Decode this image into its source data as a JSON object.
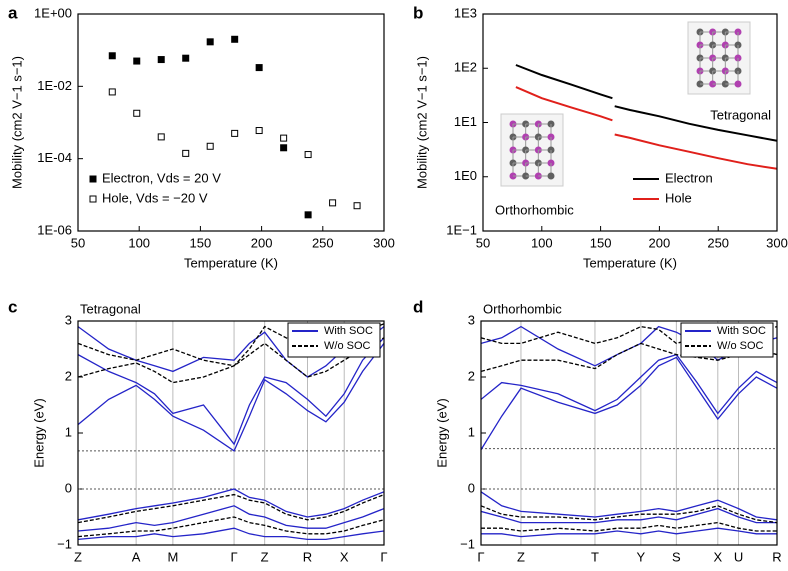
{
  "chart_data": [
    {
      "panel": "a",
      "type": "scatter",
      "xlabel": "Temperature (K)",
      "ylabel": "Mobility (cm2 V−1 s−1)",
      "xlim": [
        50,
        300
      ],
      "ylim": [
        1e-06,
        1
      ],
      "log_y": true,
      "xticks": [
        50,
        100,
        150,
        200,
        250,
        300
      ],
      "yticks": [
        {
          "value": 1,
          "label": "1E+00"
        },
        {
          "value": 0.01,
          "label": "1E-02"
        },
        {
          "value": 0.0001,
          "label": "1E-04"
        },
        {
          "value": 1e-06,
          "label": "1E-06"
        }
      ],
      "legend": "lower left",
      "series": [
        {
          "name": "Electron, Vds = 20 V",
          "color": "#000000",
          "marker": "filled",
          "x": [
            78,
            98,
            118,
            138,
            158,
            178,
            198,
            218,
            238
          ],
          "values": [
            0.07,
            0.05,
            0.055,
            0.06,
            0.17,
            0.2,
            0.033,
            0.0002,
            2.8e-06
          ]
        },
        {
          "name": "Hole, Vds = −20 V",
          "color": "#000000",
          "marker": "open",
          "x": [
            78,
            98,
            118,
            138,
            158,
            178,
            198,
            218,
            238,
            258,
            278
          ],
          "values": [
            0.007,
            0.0018,
            0.0004,
            0.00014,
            0.00022,
            0.0005,
            0.0006,
            0.00037,
            0.00013,
            6e-06,
            5e-06
          ]
        }
      ]
    },
    {
      "panel": "b",
      "type": "line",
      "xlabel": "Temperature (K)",
      "ylabel": "Mobility (cm2 V−1 s−1)",
      "xlim": [
        50,
        300
      ],
      "ylim": [
        0.1,
        1000
      ],
      "log_y": true,
      "xticks": [
        50,
        100,
        150,
        200,
        250,
        300
      ],
      "yticks": [
        {
          "value": 0.1,
          "label": "1E−1"
        },
        {
          "value": 1,
          "label": "1E0"
        },
        {
          "value": 10,
          "label": "1E1"
        },
        {
          "value": 100,
          "label": "1E2"
        },
        {
          "value": 1000,
          "label": "1E3"
        }
      ],
      "legend": "lower right",
      "labels": [
        "Tetragonal",
        "Orthorhombic"
      ],
      "series": [
        {
          "name": "Electron",
          "color": "#000000",
          "x": [
            78,
            100,
            125,
            150,
            160,
            161,
            162,
            175,
            200,
            225,
            250,
            275,
            300
          ],
          "values": [
            115,
            75,
            50,
            33,
            28,
            null,
            20,
            17,
            13,
            9.5,
            7.3,
            5.8,
            4.6
          ]
        },
        {
          "name": "Hole",
          "color": "#e0201b",
          "x": [
            78,
            100,
            125,
            150,
            160,
            161,
            162,
            175,
            200,
            225,
            250,
            275,
            300
          ],
          "values": [
            45,
            28,
            19,
            13,
            11,
            null,
            6,
            5.2,
            3.8,
            2.9,
            2.2,
            1.7,
            1.4
          ]
        }
      ]
    },
    {
      "panel": "c",
      "type": "line",
      "title": "Tetragonal",
      "ylabel": "Energy (eV)",
      "xlim": [
        0,
        1
      ],
      "ylim": [
        -1,
        3
      ],
      "xgrid": true,
      "xticks": [
        {
          "value": 0,
          "label": "Z"
        },
        {
          "value": 0.19,
          "label": "A"
        },
        {
          "value": 0.31,
          "label": "M"
        },
        {
          "value": 0.51,
          "label": "Γ"
        },
        {
          "value": 0.61,
          "label": "Z"
        },
        {
          "value": 0.75,
          "label": "R"
        },
        {
          "value": 0.87,
          "label": "X"
        },
        {
          "value": 1,
          "label": "Γ"
        }
      ],
      "yticks": [
        {
          "value": -1,
          "label": "−1"
        },
        0,
        1,
        2,
        3
      ],
      "hlines": [
        0,
        0.68
      ],
      "legend": "upper right",
      "x": [
        0,
        0.1,
        0.19,
        0.25,
        0.31,
        0.41,
        0.51,
        0.56,
        0.61,
        0.68,
        0.75,
        0.81,
        0.87,
        0.93,
        1
      ],
      "series": [
        {
          "name": "With SOC",
          "color": "#2424c8",
          "dash": false,
          "values": [
            [
              1.15,
              1.6,
              1.85,
              1.6,
              1.3,
              1.05,
              0.68,
              1.3,
              1.95,
              1.7,
              1.4,
              1.2,
              1.55,
              2.1,
              2.6
            ],
            [
              2.4,
              2.1,
              1.9,
              1.7,
              1.35,
              1.5,
              0.8,
              1.5,
              2.0,
              1.9,
              1.6,
              1.3,
              1.7,
              2.3,
              2.7
            ],
            [
              2.9,
              2.5,
              2.3,
              2.2,
              2.1,
              2.35,
              2.3,
              2.6,
              2.8,
              2.3,
              2.0,
              2.2,
              2.5,
              2.6,
              2.9
            ],
            [
              -0.55,
              -0.45,
              -0.35,
              -0.3,
              -0.25,
              -0.15,
              0,
              -0.15,
              -0.2,
              -0.4,
              -0.5,
              -0.45,
              -0.35,
              -0.2,
              -0.05
            ],
            [
              -0.75,
              -0.7,
              -0.6,
              -0.65,
              -0.6,
              -0.45,
              -0.3,
              -0.45,
              -0.5,
              -0.65,
              -0.7,
              -0.7,
              -0.6,
              -0.5,
              -0.35
            ],
            [
              -0.9,
              -0.85,
              -0.85,
              -0.8,
              -0.85,
              -0.8,
              -0.7,
              -0.8,
              -0.85,
              -0.85,
              -0.9,
              -0.9,
              -0.85,
              -0.8,
              -0.75
            ]
          ]
        },
        {
          "name": "W/o SOC",
          "color": "#000000",
          "dash": true,
          "values": [
            [
              2.0,
              2.15,
              2.25,
              2.1,
              1.9,
              2.0,
              2.2,
              2.4,
              2.6,
              2.3,
              2.0,
              2.1,
              2.3,
              2.5,
              2.7
            ],
            [
              2.6,
              2.4,
              2.3,
              2.4,
              2.5,
              2.3,
              2.2,
              2.5,
              2.9,
              2.7,
              2.5,
              2.4,
              2.6,
              2.8,
              2.95
            ],
            [
              -0.6,
              -0.5,
              -0.4,
              -0.35,
              -0.3,
              -0.2,
              -0.1,
              -0.2,
              -0.25,
              -0.45,
              -0.55,
              -0.5,
              -0.4,
              -0.25,
              -0.1
            ],
            [
              -0.85,
              -0.8,
              -0.75,
              -0.75,
              -0.7,
              -0.6,
              -0.5,
              -0.6,
              -0.65,
              -0.75,
              -0.8,
              -0.8,
              -0.75,
              -0.65,
              -0.55
            ]
          ]
        }
      ]
    },
    {
      "panel": "d",
      "type": "line",
      "title": "Orthorhombic",
      "ylabel": "Energy (eV)",
      "xlim": [
        0,
        1
      ],
      "ylim": [
        -1,
        3
      ],
      "xgrid": true,
      "xticks": [
        {
          "value": 0,
          "label": "Γ"
        },
        {
          "value": 0.135,
          "label": "Z"
        },
        {
          "value": 0.385,
          "label": "T"
        },
        {
          "value": 0.54,
          "label": "Y"
        },
        {
          "value": 0.66,
          "label": "S"
        },
        {
          "value": 0.8,
          "label": "X"
        },
        {
          "value": 0.87,
          "label": "U"
        },
        {
          "value": 1,
          "label": "R"
        }
      ],
      "yticks": [
        {
          "value": -1,
          "label": "−1"
        },
        0,
        1,
        2,
        3
      ],
      "hlines": [
        0,
        0.72
      ],
      "legend": "upper right",
      "x": [
        0,
        0.07,
        0.135,
        0.26,
        0.385,
        0.46,
        0.54,
        0.6,
        0.66,
        0.73,
        0.8,
        0.87,
        0.93,
        1
      ],
      "series": [
        {
          "name": "With SOC",
          "color": "#2424c8",
          "dash": false,
          "values": [
            [
              0.7,
              1.3,
              1.8,
              1.55,
              1.35,
              1.5,
              1.85,
              2.2,
              2.35,
              1.8,
              1.25,
              1.7,
              2.0,
              1.8
            ],
            [
              1.6,
              1.9,
              1.85,
              1.7,
              1.4,
              1.6,
              2.0,
              2.3,
              2.4,
              1.9,
              1.35,
              1.8,
              2.1,
              1.9
            ],
            [
              2.6,
              2.7,
              2.9,
              2.5,
              2.2,
              2.4,
              2.6,
              2.9,
              2.8,
              2.6,
              2.3,
              2.5,
              2.6,
              2.7
            ],
            [
              -0.05,
              -0.3,
              -0.4,
              -0.45,
              -0.5,
              -0.45,
              -0.4,
              -0.35,
              -0.4,
              -0.3,
              -0.2,
              -0.35,
              -0.5,
              -0.55
            ],
            [
              -0.4,
              -0.5,
              -0.6,
              -0.6,
              -0.6,
              -0.55,
              -0.55,
              -0.5,
              -0.55,
              -0.45,
              -0.35,
              -0.5,
              -0.6,
              -0.6
            ],
            [
              -0.8,
              -0.8,
              -0.85,
              -0.8,
              -0.8,
              -0.75,
              -0.8,
              -0.75,
              -0.8,
              -0.75,
              -0.7,
              -0.75,
              -0.8,
              -0.8
            ]
          ]
        },
        {
          "name": "W/o SOC",
          "color": "#000000",
          "dash": true,
          "values": [
            [
              2.1,
              2.2,
              2.3,
              2.3,
              2.15,
              2.4,
              2.6,
              2.5,
              2.4,
              2.35,
              2.3,
              2.4,
              2.5,
              2.4
            ],
            [
              2.7,
              2.6,
              2.6,
              2.8,
              2.6,
              2.7,
              2.9,
              2.85,
              2.6,
              2.7,
              2.55,
              2.7,
              2.8,
              2.9
            ],
            [
              -0.3,
              -0.45,
              -0.5,
              -0.5,
              -0.55,
              -0.5,
              -0.45,
              -0.45,
              -0.45,
              -0.4,
              -0.3,
              -0.45,
              -0.55,
              -0.6
            ],
            [
              -0.7,
              -0.7,
              -0.75,
              -0.7,
              -0.75,
              -0.7,
              -0.7,
              -0.65,
              -0.7,
              -0.65,
              -0.6,
              -0.7,
              -0.75,
              -0.75
            ]
          ]
        }
      ]
    }
  ]
}
